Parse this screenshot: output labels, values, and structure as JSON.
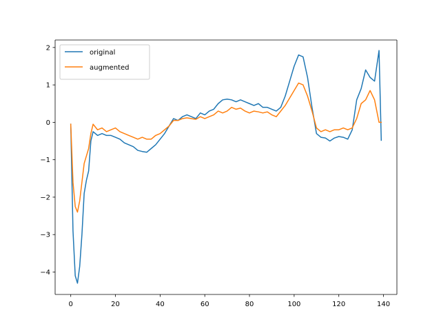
{
  "chart_data": {
    "type": "line",
    "title": "",
    "xlabel": "",
    "ylabel": "",
    "xlim": [
      -7,
      146
    ],
    "ylim": [
      -4.6,
      2.2
    ],
    "xticks": [
      0,
      20,
      40,
      60,
      80,
      100,
      120,
      140
    ],
    "yticks": [
      -4,
      -3,
      -2,
      -1,
      0,
      1,
      2
    ],
    "grid": false,
    "legend": "top-left",
    "series": [
      {
        "name": "original",
        "color": "#1f77b4",
        "x": [
          0,
          1,
          2,
          3,
          4,
          5,
          6,
          7,
          8,
          9,
          10,
          12,
          14,
          16,
          18,
          20,
          22,
          24,
          26,
          28,
          30,
          32,
          34,
          36,
          38,
          40,
          42,
          44,
          46,
          48,
          50,
          52,
          54,
          56,
          58,
          60,
          62,
          64,
          66,
          68,
          70,
          72,
          74,
          76,
          78,
          80,
          82,
          84,
          86,
          88,
          90,
          92,
          94,
          96,
          98,
          100,
          102,
          104,
          106,
          108,
          110,
          112,
          114,
          116,
          118,
          120,
          122,
          124,
          126,
          128,
          130,
          132,
          134,
          136,
          138,
          139
        ],
        "y": [
          -0.05,
          -2.9,
          -4.1,
          -4.3,
          -3.85,
          -3.0,
          -1.9,
          -1.55,
          -1.3,
          -0.5,
          -0.25,
          -0.35,
          -0.3,
          -0.35,
          -0.35,
          -0.4,
          -0.45,
          -0.55,
          -0.6,
          -0.65,
          -0.75,
          -0.78,
          -0.8,
          -0.7,
          -0.6,
          -0.45,
          -0.3,
          -0.1,
          0.1,
          0.05,
          0.15,
          0.2,
          0.15,
          0.1,
          0.25,
          0.2,
          0.3,
          0.35,
          0.5,
          0.6,
          0.62,
          0.6,
          0.55,
          0.6,
          0.55,
          0.5,
          0.45,
          0.5,
          0.4,
          0.4,
          0.35,
          0.3,
          0.4,
          0.7,
          1.1,
          1.5,
          1.8,
          1.75,
          1.2,
          0.4,
          -0.3,
          -0.4,
          -0.42,
          -0.5,
          -0.42,
          -0.38,
          -0.4,
          -0.45,
          -0.2,
          0.6,
          0.9,
          1.4,
          1.2,
          1.1,
          1.92,
          -0.48
        ]
      },
      {
        "name": "augmented",
        "color": "#ff7f0e",
        "x": [
          0,
          1,
          2,
          3,
          4,
          5,
          6,
          7,
          8,
          9,
          10,
          12,
          14,
          16,
          18,
          20,
          22,
          24,
          26,
          28,
          30,
          32,
          34,
          36,
          38,
          40,
          42,
          44,
          46,
          48,
          50,
          52,
          54,
          56,
          58,
          60,
          62,
          64,
          66,
          68,
          70,
          72,
          74,
          76,
          78,
          80,
          82,
          84,
          86,
          88,
          90,
          92,
          94,
          96,
          98,
          100,
          102,
          104,
          106,
          108,
          110,
          112,
          114,
          116,
          118,
          120,
          122,
          124,
          126,
          128,
          130,
          132,
          134,
          136,
          138,
          139
        ],
        "y": [
          -0.05,
          -1.6,
          -2.25,
          -2.4,
          -2.1,
          -1.6,
          -1.1,
          -0.9,
          -0.7,
          -0.3,
          -0.05,
          -0.2,
          -0.15,
          -0.25,
          -0.2,
          -0.15,
          -0.25,
          -0.3,
          -0.35,
          -0.4,
          -0.45,
          -0.4,
          -0.45,
          -0.45,
          -0.35,
          -0.3,
          -0.2,
          -0.1,
          0.05,
          0.05,
          0.1,
          0.12,
          0.1,
          0.08,
          0.15,
          0.1,
          0.15,
          0.2,
          0.3,
          0.25,
          0.3,
          0.4,
          0.35,
          0.38,
          0.3,
          0.25,
          0.3,
          0.28,
          0.25,
          0.28,
          0.2,
          0.15,
          0.3,
          0.45,
          0.65,
          0.85,
          1.05,
          1.0,
          0.7,
          0.3,
          -0.15,
          -0.25,
          -0.2,
          -0.25,
          -0.2,
          -0.2,
          -0.15,
          -0.2,
          -0.15,
          0.1,
          0.5,
          0.6,
          0.85,
          0.6,
          0.0,
          0.0
        ]
      }
    ]
  }
}
